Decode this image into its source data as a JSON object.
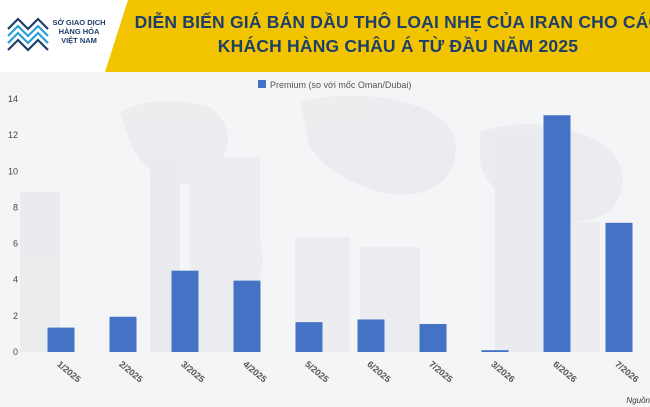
{
  "header": {
    "logo_lines": [
      "SỞ GIAO DỊCH",
      "HÀNG HÓA",
      "VIỆT NAM"
    ],
    "title_line1": "DIỄN BIẾN GIÁ BÁN DẦU THÔ LOẠI NHẸ CỦA IRAN CHO CÁC",
    "title_line2": "KHÁCH HÀNG CHÂU Á TỪ ĐẦU NĂM 2025",
    "accent_color": "#f2c400",
    "title_color": "#1f3f6b"
  },
  "chart_data": {
    "type": "bar",
    "title": "",
    "xlabel": "",
    "ylabel": "",
    "legend_position": "top-center",
    "grid": false,
    "ylim": [
      0,
      14
    ],
    "yticks": [
      0,
      2,
      4,
      6,
      8,
      10,
      12,
      14
    ],
    "categories": [
      "1/2025",
      "2/2025",
      "3/2025",
      "4/2025",
      "5/2025",
      "6/2025",
      "7/2025",
      "3/2026",
      "6/2026",
      "7/2026"
    ],
    "series": [
      {
        "name": "Premium (so với mốc Oman/Dubai)",
        "color": "#4472c4",
        "values": [
          1.35,
          1.95,
          4.5,
          3.95,
          1.65,
          1.8,
          1.55,
          0.1,
          13.1,
          7.15
        ]
      }
    ]
  },
  "footer": {
    "source_label": "Nguồn"
  }
}
